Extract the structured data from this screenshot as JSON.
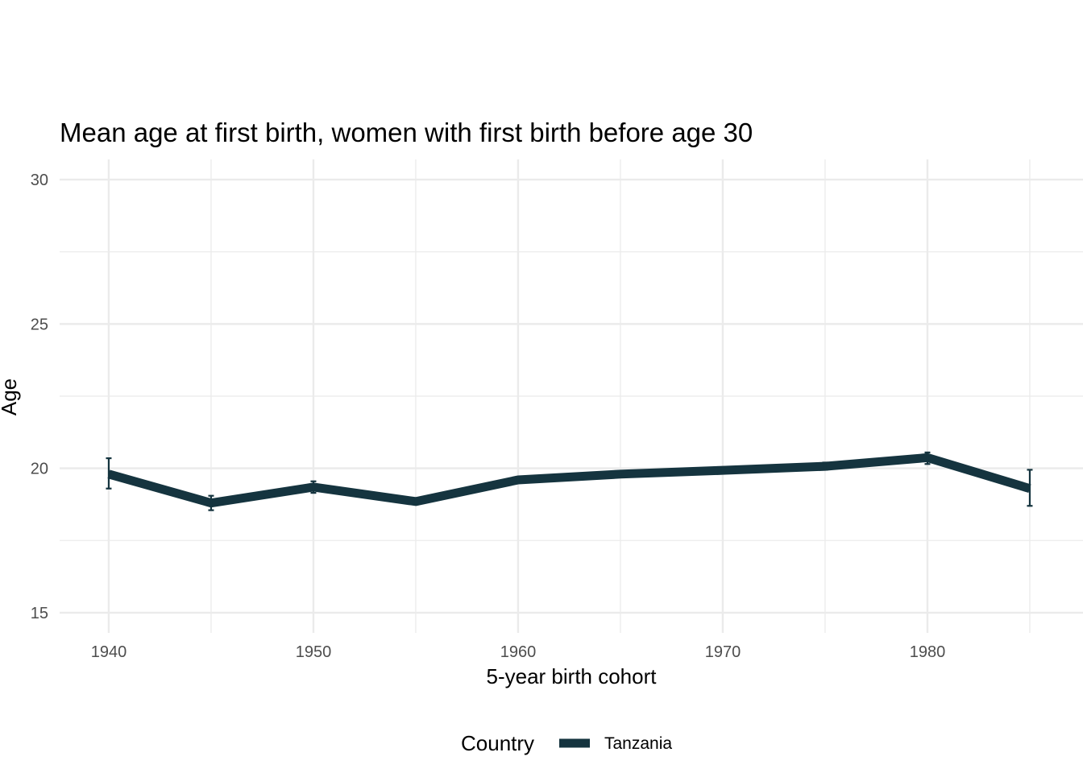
{
  "chart_data": {
    "type": "line",
    "title": "Mean age at first birth, women with first birth before age 30",
    "xlabel": "5-year birth cohort",
    "ylabel": "Age",
    "xlim": [
      1937.6,
      1987.6
    ],
    "ylim": [
      14.3,
      30.7
    ],
    "x_ticks": [
      1940,
      1950,
      1960,
      1970,
      1980
    ],
    "y_ticks": [
      15,
      20,
      25,
      30
    ],
    "grid": true,
    "legend": {
      "title": "Country",
      "position": "bottom"
    },
    "colors": {
      "series": "#15343f",
      "grid": "#ebebeb"
    },
    "series": [
      {
        "name": "Tanzania",
        "x": [
          1940,
          1945,
          1950,
          1955,
          1960,
          1965,
          1970,
          1975,
          1980,
          1985
        ],
        "y": [
          19.8,
          18.8,
          19.35,
          18.85,
          19.6,
          19.8,
          19.93,
          20.07,
          20.37,
          19.3
        ],
        "error_low": [
          19.3,
          18.55,
          19.15,
          18.75,
          19.5,
          19.72,
          19.87,
          19.95,
          20.15,
          18.7
        ],
        "error_high": [
          20.35,
          19.05,
          19.55,
          18.95,
          19.7,
          19.88,
          19.99,
          20.2,
          20.55,
          19.95
        ]
      }
    ]
  }
}
